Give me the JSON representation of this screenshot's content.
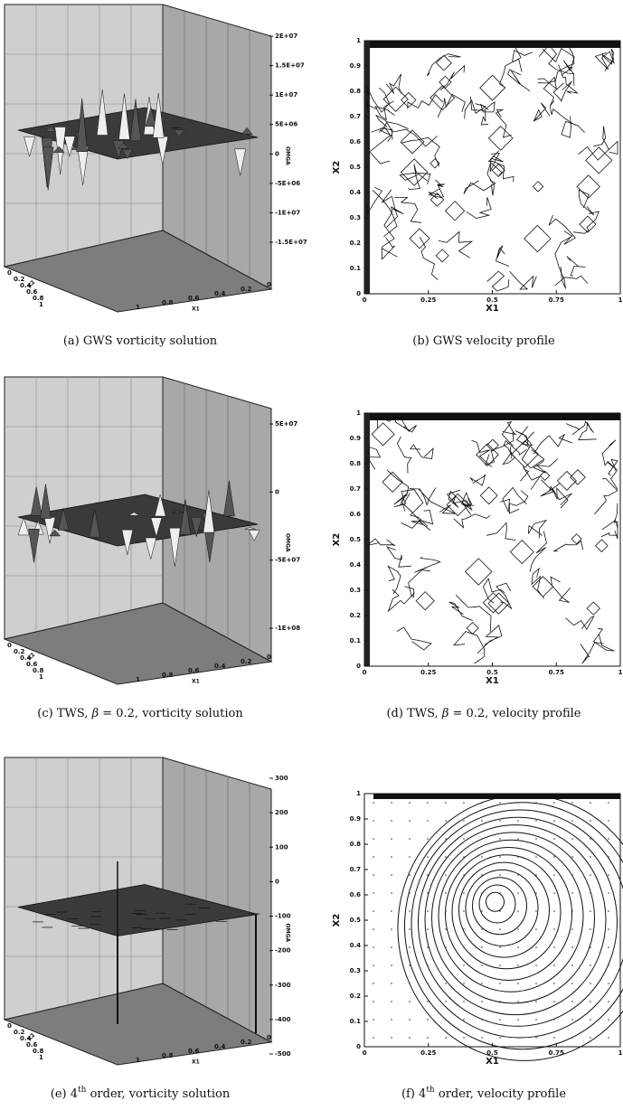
{
  "panels": [
    {
      "kind": "surface",
      "caption": {
        "pre": "(a) GWS vorticity solution"
      },
      "z_label": "OMGA",
      "x_label": "X1",
      "y_label": "X2",
      "z_ticks": [
        "2E+07",
        "1.5E+07",
        "1E+07",
        "5E+06",
        "0",
        "-5E+06",
        "-1E+07",
        "-1.5E+07"
      ],
      "y_ticks": [
        "0",
        "0.2",
        "0.4",
        "0.6",
        "0.8",
        "1"
      ],
      "x_ticks": [
        "1",
        "0.8",
        "0.6",
        "0.4",
        "0.2",
        "0"
      ]
    },
    {
      "kind": "contour",
      "caption": {
        "pre": "(b) GWS velocity profile"
      },
      "x_label": "X1",
      "y_label": "X2",
      "x_ticks": [
        "0",
        "0.25",
        "0.5",
        "0.75",
        "1"
      ],
      "y_ticks": [
        "0",
        "0.1",
        "0.2",
        "0.3",
        "0.4",
        "0.5",
        "0.6",
        "0.7",
        "0.8",
        "0.9",
        "1"
      ]
    },
    {
      "kind": "surface",
      "caption": {
        "pre": "(c) TWS, ",
        "sym": "β",
        "post": " = 0.2, vorticity solution"
      },
      "z_label": "OMGA",
      "x_label": "X1",
      "y_label": "X2",
      "z_ticks": [
        "5E+07",
        "0",
        "-5E+07",
        "-1E+08"
      ],
      "y_ticks": [
        "0",
        "0.2",
        "0.4",
        "0.6",
        "0.8",
        "1"
      ],
      "x_ticks": [
        "1",
        "0.8",
        "0.6",
        "0.4",
        "0.2",
        "0"
      ]
    },
    {
      "kind": "contour",
      "caption": {
        "pre": "(d) TWS, ",
        "sym": "β",
        "post": " = 0.2, velocity profile"
      },
      "x_label": "X1",
      "y_label": "X2",
      "x_ticks": [
        "0",
        "0.25",
        "0.5",
        "0.75",
        "1"
      ],
      "y_ticks": [
        "0",
        "0.1",
        "0.2",
        "0.3",
        "0.4",
        "0.5",
        "0.6",
        "0.7",
        "0.8",
        "0.9",
        "1"
      ]
    },
    {
      "kind": "surface",
      "caption": {
        "pre": "(e) 4",
        "sup": "th",
        "post": " order, vorticity solution"
      },
      "z_label": "OMGA",
      "x_label": "X1",
      "y_label": "X2",
      "z_ticks": [
        "300",
        "200",
        "100",
        "0",
        "-100",
        "-200",
        "-300",
        "-400",
        "-500"
      ],
      "y_ticks": [
        "0",
        "0.2",
        "0.4",
        "0.6",
        "0.8",
        "1"
      ],
      "x_ticks": [
        "1",
        "0.8",
        "0.6",
        "0.4",
        "0.2",
        "0"
      ]
    },
    {
      "kind": "contour",
      "caption": {
        "pre": "(f) 4",
        "sup": "th",
        "post": " order, velocity profile"
      },
      "x_label": "X1",
      "y_label": "X2",
      "x_ticks": [
        "0",
        "0.25",
        "0.5",
        "0.75",
        "1"
      ],
      "y_ticks": [
        "0",
        "0.1",
        "0.2",
        "0.3",
        "0.4",
        "0.5",
        "0.6",
        "0.7",
        "0.8",
        "0.9",
        "1"
      ]
    }
  ]
}
